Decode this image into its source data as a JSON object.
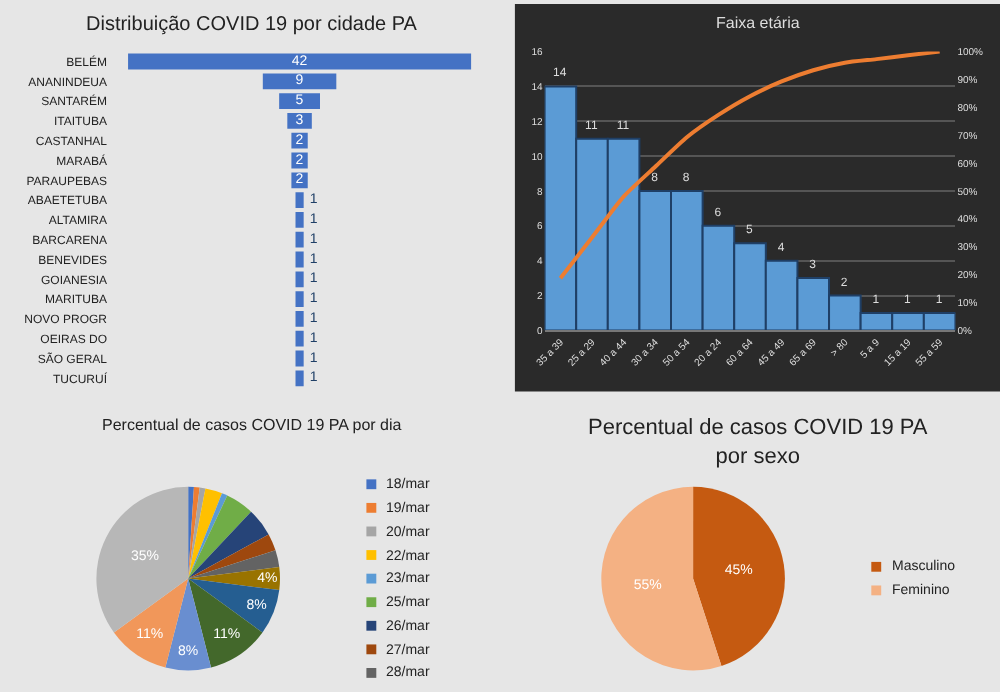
{
  "chart_data": [
    {
      "type": "other",
      "title": "Distribuição COVID 19 por cidade PA",
      "categories": [
        "BELÉM",
        "ANANINDEUA",
        "SANTARÉM",
        "ITAITUBA",
        "CASTANHAL",
        "MARABÁ",
        "PARAUPEBAS",
        "ABAETETUBA",
        "ALTAMIRA",
        "BARCARENA",
        "BENEVIDES",
        "GOIANESIA",
        "MARITUBA",
        "NOVO PROGR",
        "OEIRAS DO",
        "SÃO GERAL",
        "TUCURUÍ"
      ],
      "values": [
        42,
        9,
        5,
        3,
        2,
        2,
        2,
        1,
        1,
        1,
        1,
        1,
        1,
        1,
        1,
        1,
        1
      ],
      "color": "#4472c4",
      "data_labels": true
    },
    {
      "type": "bar",
      "title": "Faixa etária",
      "categories": [
        "35 a 39",
        "25 a 29",
        "40 a 44",
        "30 a 34",
        "50 a 54",
        "20 a 24",
        "60 a 64",
        "45 a 49",
        "65 a 69",
        "> 80",
        "5 a 9",
        "15 a 19",
        "55 a 59"
      ],
      "series": [
        {
          "type": "bar",
          "color": "#5b9bd5",
          "values": [
            14,
            11,
            11,
            8,
            8,
            6,
            5,
            4,
            3,
            2,
            1,
            1,
            1
          ],
          "value_labels": [
            "14",
            "11",
            "11",
            "8",
            "8",
            "6",
            "5",
            "4",
            "3",
            "2",
            "1",
            "1",
            "1"
          ]
        },
        {
          "type": "line",
          "axis": "y2",
          "color": "#ed7d31",
          "values": [
            18.7,
            33.3,
            48,
            58.7,
            69.3,
            77.3,
            84,
            89.3,
            93.3,
            96,
            97.3,
            98.7,
            100
          ]
        }
      ],
      "ylim": [
        0,
        16
      ],
      "yticks": [
        0,
        2,
        4,
        6,
        8,
        10,
        12,
        14,
        16
      ],
      "y2lim": [
        0,
        100
      ],
      "y2ticks": [
        {
          "value": 0,
          "label": "0%"
        },
        {
          "value": 10,
          "label": "10%"
        },
        {
          "value": 20,
          "label": "20%"
        },
        {
          "value": 30,
          "label": "30%"
        },
        {
          "value": 40,
          "label": "40%"
        },
        {
          "value": 50,
          "label": "50%"
        },
        {
          "value": 60,
          "label": "60%"
        },
        {
          "value": 70,
          "label": "70%"
        },
        {
          "value": 80,
          "label": "80%"
        },
        {
          "value": 90,
          "label": "90%"
        },
        {
          "value": 100,
          "label": "100%"
        }
      ],
      "grid": "y",
      "legend": false,
      "marker": "none"
    },
    {
      "type": "pie",
      "title": "Percentual de casos COVID 19 PA por dia",
      "categories": [
        "18/mar",
        "19/mar",
        "20/mar",
        "22/mar",
        "23/mar",
        "25/mar",
        "26/mar",
        "27/mar",
        "28/mar",
        null,
        null,
        null,
        null,
        null,
        null
      ],
      "values": [
        1,
        1,
        1,
        3,
        1,
        5,
        5,
        3,
        3,
        4,
        8,
        11,
        8,
        11,
        35
      ],
      "colors": [
        "#4472c4",
        "#ed7d31",
        "#a5a5a5",
        "#ffc000",
        "#5b9bd5",
        "#70ad47",
        "#264478",
        "#9e480e",
        "#636363",
        "#997300",
        "#255e91",
        "#43682b",
        "#698ed0",
        "#f1975a",
        "#b7b7b7"
      ],
      "value_labels": [
        null,
        null,
        null,
        null,
        null,
        null,
        null,
        null,
        null,
        "4%",
        "8%",
        "11%",
        "8%",
        "11%",
        "35%"
      ],
      "legend": "right"
    },
    {
      "type": "pie",
      "title": "Percentual de casos COVID 19 PA por sexo",
      "categories": [
        "Masculino",
        "Feminino"
      ],
      "values": [
        45,
        55
      ],
      "colors": [
        "#c55a11",
        "#f4b183"
      ],
      "value_labels": [
        "45%",
        "55%"
      ],
      "legend": "right"
    }
  ]
}
